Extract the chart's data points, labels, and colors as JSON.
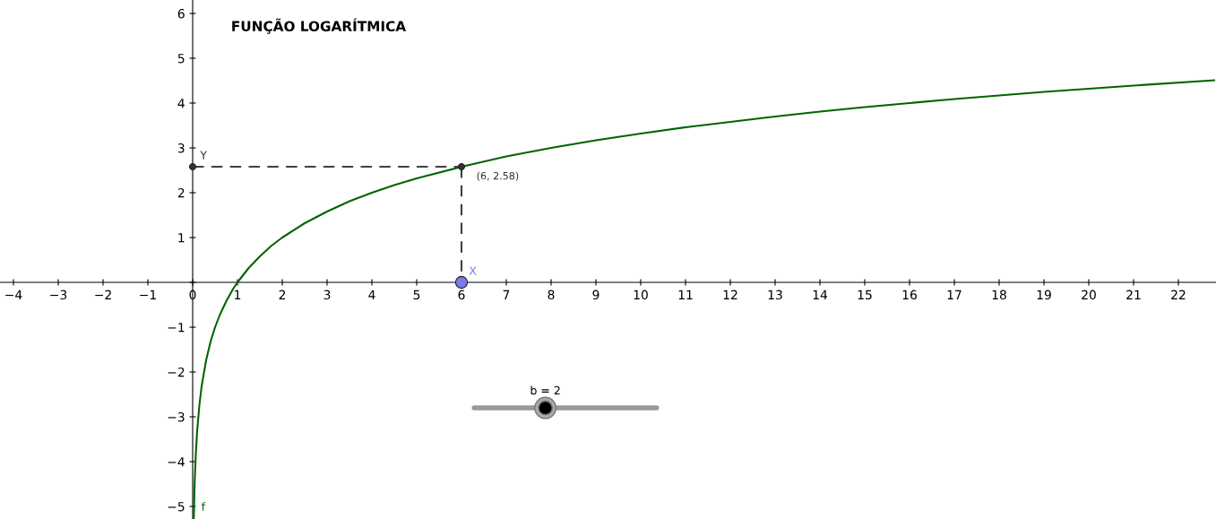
{
  "chart_data": {
    "type": "line",
    "title": "FUNÇÃO LOGARÍTMICA",
    "xlim": [
      -4.3,
      22.84
    ],
    "ylim": [
      -5.28,
      6.3
    ],
    "xticks": [
      -4,
      -3,
      -2,
      -1,
      0,
      1,
      2,
      3,
      4,
      5,
      6,
      7,
      8,
      9,
      10,
      11,
      12,
      13,
      14,
      15,
      16,
      17,
      18,
      19,
      20,
      21,
      22
    ],
    "yticks": [
      -5,
      -4,
      -3,
      -2,
      -1,
      {
        "value": 0,
        "label": null
      },
      1,
      2,
      3,
      4,
      5,
      6
    ],
    "grid": false,
    "legend": false,
    "series": [
      {
        "name": "f",
        "color": "#006400",
        "marker": "none",
        "line_style": "solid",
        "x": [
          0.026,
          0.04,
          0.05,
          0.07,
          0.1,
          0.15,
          0.2,
          0.3,
          0.4,
          0.5,
          0.6,
          0.75,
          0.9,
          1,
          1.25,
          1.5,
          1.75,
          2,
          2.5,
          3,
          3.5,
          4,
          4.5,
          5,
          6,
          7,
          8,
          9,
          10,
          11,
          12,
          13,
          14,
          15,
          16,
          17,
          18,
          19,
          20,
          21,
          22.8
        ],
        "values": [
          -5.26,
          -4.64,
          -4.32,
          -3.84,
          -3.32,
          -2.74,
          -2.32,
          -1.74,
          -1.32,
          -1,
          -0.74,
          -0.42,
          -0.15,
          0,
          0.32,
          0.58,
          0.81,
          1,
          1.32,
          1.58,
          1.81,
          2,
          2.17,
          2.32,
          2.58,
          2.81,
          3,
          3.17,
          3.32,
          3.46,
          3.58,
          3.7,
          3.81,
          3.91,
          4,
          4.09,
          4.17,
          4.25,
          4.32,
          4.39,
          4.51
        ]
      },
      {
        "type": "line",
        "color": "#404040",
        "marker": "none",
        "line_style": "dashed",
        "x": [
          0,
          6
        ],
        "values": [
          2.58,
          2.58
        ]
      },
      {
        "type": "line",
        "color": "#404040",
        "marker": "none",
        "line_style": "dashed",
        "x": [
          6,
          6
        ],
        "values": [
          2.58,
          0
        ]
      },
      {
        "type": "scatter",
        "color": "#333333",
        "marker": "circle",
        "x": [
          6
        ],
        "values": [
          2.58
        ]
      },
      {
        "name": "Y",
        "type": "scatter",
        "color": "#333333",
        "marker": "circle",
        "x": [
          0
        ],
        "values": [
          2.58
        ]
      },
      {
        "name": "X",
        "type": "scatter",
        "color": "#7b7be8",
        "marker": "circle",
        "x": [
          6
        ],
        "values": [
          0
        ]
      }
    ],
    "annotations": [
      {
        "text": "(6, 2.58)",
        "x": 6,
        "y": 2.58
      },
      "b = 2"
    ]
  }
}
